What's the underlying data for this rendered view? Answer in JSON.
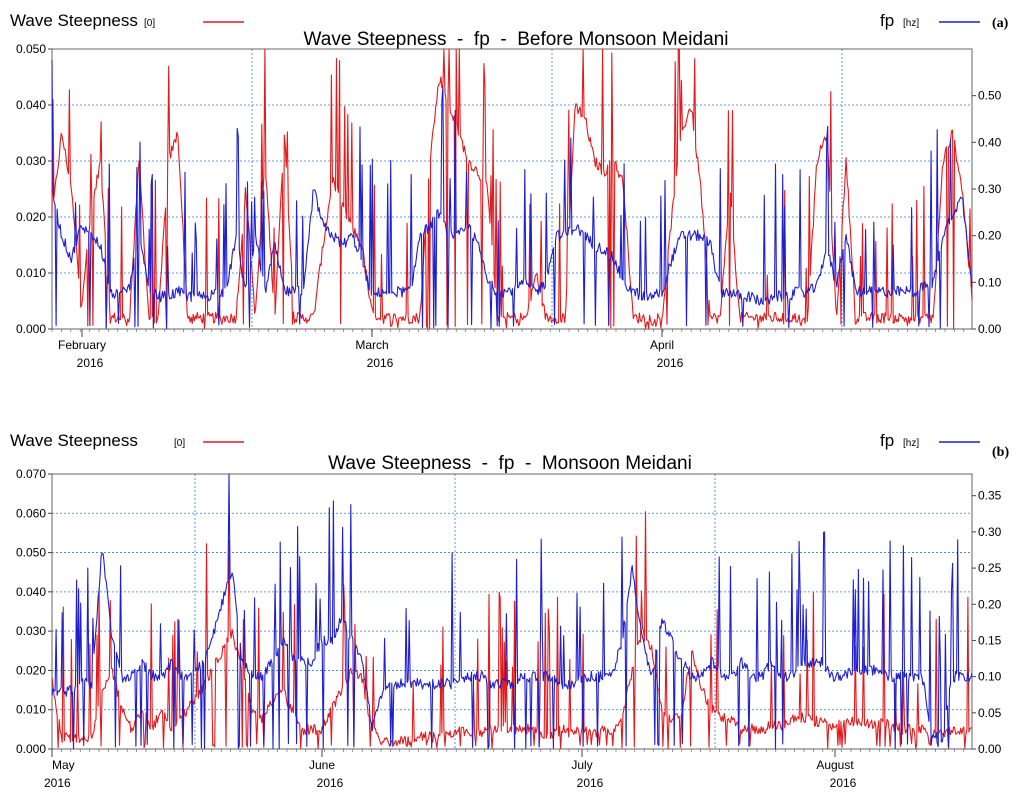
{
  "chart_data": [
    {
      "type": "line",
      "panel_tag": "(a)",
      "title": "Wave Steepness  -  fp  -  Before Monsoon Meidani",
      "legend_left": {
        "label": "Wave Steepness",
        "unit": "[0]",
        "color": "#e31a1c"
      },
      "legend_right": {
        "label": "fp",
        "unit": "[hz]",
        "color": "#1f1fd0"
      },
      "y_left": {
        "range": [
          0,
          0.05
        ],
        "ticks": [
          "0.000",
          "0.010",
          "0.020",
          "0.030",
          "0.040",
          "0.050"
        ]
      },
      "y_right": {
        "range": [
          0,
          0.6
        ],
        "ticks": [
          "0.00",
          "0.10",
          "0.20",
          "0.30",
          "0.40",
          "0.50"
        ]
      },
      "x_labels": [
        {
          "month": "February",
          "year": "2016"
        },
        {
          "month": "March",
          "year": "2016"
        },
        {
          "month": "April",
          "year": "2016"
        }
      ],
      "x_range": [
        "2016-01-26",
        "2016-05-01"
      ],
      "grid": true,
      "series": [
        {
          "name": "Wave Steepness",
          "axis": "left",
          "color": "#e31a1c",
          "approx_profile": [
            0.02,
            0.035,
            0.025,
            0.004,
            0.02,
            0.03,
            0.002,
            0.002,
            0.002,
            0.03,
            0.002,
            0.002,
            0.03,
            0.035,
            0.002,
            0.002,
            0.002,
            0.002,
            0.002,
            0.002,
            0.025,
            0.002,
            0.03,
            0.002,
            0.035,
            0.002,
            0.002,
            0.002,
            0.015,
            0.027,
            0.022,
            0.018,
            0.015,
            0.003,
            0.002,
            0.002,
            0.002,
            0.002,
            0.002,
            0.03,
            0.045,
            0.04,
            0.035,
            0.03,
            0.028,
            0.025,
            0.002,
            0.002,
            0.002,
            0.002,
            0.01,
            0.002,
            0.002,
            0.002,
            0.04,
            0.038,
            0.03,
            0.028,
            0.03,
            0.026,
            0.002,
            0.002,
            0.002,
            0.002,
            0.02,
            0.035,
            0.04,
            0.025,
            0.002,
            0.002,
            0.025,
            0.002,
            0.002,
            0.002,
            0.002,
            0.002,
            0.002,
            0.002,
            0.002,
            0.03,
            0.035,
            0.002,
            0.03,
            0.002,
            0.002,
            0.002,
            0.002,
            0.002,
            0.002,
            0.002,
            0.002,
            0.002,
            0.03,
            0.035,
            0.025,
            0.005
          ]
        },
        {
          "name": "fp",
          "axis": "right",
          "color": "#1f1fd0",
          "approx_profile": [
            0.3,
            0.2,
            0.15,
            0.22,
            0.2,
            0.18,
            0.08,
            0.07,
            0.09,
            0.2,
            0.08,
            0.07,
            0.07,
            0.08,
            0.07,
            0.07,
            0.07,
            0.08,
            0.08,
            0.2,
            0.08,
            0.2,
            0.08,
            0.18,
            0.08,
            0.08,
            0.08,
            0.3,
            0.22,
            0.2,
            0.18,
            0.2,
            0.15,
            0.07,
            0.08,
            0.08,
            0.08,
            0.08,
            0.2,
            0.22,
            0.25,
            0.2,
            0.2,
            0.22,
            0.18,
            0.1,
            0.08,
            0.08,
            0.09,
            0.1,
            0.08,
            0.1,
            0.2,
            0.2,
            0.22,
            0.2,
            0.18,
            0.17,
            0.15,
            0.1,
            0.08,
            0.07,
            0.07,
            0.08,
            0.15,
            0.2,
            0.2,
            0.2,
            0.18,
            0.08,
            0.08,
            0.07,
            0.07,
            0.06,
            0.06,
            0.07,
            0.07,
            0.08,
            0.08,
            0.09,
            0.18,
            0.09,
            0.2,
            0.08,
            0.08,
            0.08,
            0.08,
            0.08,
            0.08,
            0.08,
            0.09,
            0.1,
            0.2,
            0.25,
            0.28,
            0.1
          ]
        }
      ]
    },
    {
      "type": "line",
      "panel_tag": "(b)",
      "title": "Wave Steepness  -  fp  -  Monsoon Meidani",
      "legend_left": {
        "label": "Wave Steepness",
        "unit": "[0]",
        "color": "#e31a1c"
      },
      "legend_right": {
        "label": "fp",
        "unit": "[hz]",
        "color": "#1f1fd0"
      },
      "y_left": {
        "range": [
          0,
          0.07
        ],
        "ticks": [
          "0.000",
          "0.010",
          "0.020",
          "0.030",
          "0.040",
          "0.050",
          "0.060",
          "0.070"
        ]
      },
      "y_right": {
        "range": [
          0,
          0.38
        ],
        "ticks": [
          "0.00",
          "0.05",
          "0.10",
          "0.15",
          "0.20",
          "0.25",
          "0.30",
          "0.35"
        ]
      },
      "x_labels": [
        {
          "month": "May",
          "year": "2016"
        },
        {
          "month": "June",
          "year": "2016"
        },
        {
          "month": "July",
          "year": "2016"
        },
        {
          "month": "August",
          "year": "2016"
        }
      ],
      "x_range": [
        "2016-05-01",
        "2016-09-04"
      ],
      "grid": true,
      "series": [
        {
          "name": "Wave Steepness",
          "axis": "left",
          "color": "#e31a1c",
          "approx_profile": [
            0.017,
            0.003,
            0.003,
            0.003,
            0.003,
            0.015,
            0.02,
            0.01,
            0.005,
            0.01,
            0.005,
            0.01,
            0.005,
            0.008,
            0.012,
            0.015,
            0.02,
            0.025,
            0.03,
            0.02,
            0.01,
            0.008,
            0.012,
            0.015,
            0.01,
            0.005,
            0.005,
            0.005,
            0.01,
            0.015,
            0.02,
            0.018,
            0.005,
            0.002,
            0.002,
            0.002,
            0.002,
            0.003,
            0.003,
            0.004,
            0.004,
            0.005,
            0.004,
            0.004,
            0.005,
            0.006,
            0.005,
            0.005,
            0.005,
            0.004,
            0.004,
            0.005,
            0.004,
            0.005,
            0.004,
            0.005,
            0.004,
            0.008,
            0.02,
            0.03,
            0.025,
            0.01,
            0.008,
            0.01,
            0.025,
            0.015,
            0.01,
            0.008,
            0.008,
            0.005,
            0.005,
            0.005,
            0.006,
            0.006,
            0.008,
            0.008,
            0.007,
            0.007,
            0.006,
            0.006,
            0.007,
            0.007,
            0.006,
            0.007,
            0.006,
            0.005,
            0.005,
            0.005,
            0.004,
            0.004,
            0.005,
            0.005,
            0.005
          ]
        },
        {
          "name": "fp",
          "axis": "right",
          "color": "#1f1fd0",
          "approx_profile": [
            0.08,
            0.08,
            0.08,
            0.09,
            0.09,
            0.28,
            0.15,
            0.1,
            0.1,
            0.12,
            0.1,
            0.1,
            0.12,
            0.1,
            0.1,
            0.12,
            0.15,
            0.2,
            0.25,
            0.12,
            0.1,
            0.1,
            0.12,
            0.15,
            0.13,
            0.12,
            0.12,
            0.15,
            0.15,
            0.18,
            0.15,
            0.12,
            0.03,
            0.08,
            0.09,
            0.09,
            0.09,
            0.09,
            0.09,
            0.09,
            0.09,
            0.1,
            0.1,
            0.1,
            0.09,
            0.09,
            0.09,
            0.1,
            0.1,
            0.1,
            0.1,
            0.09,
            0.09,
            0.1,
            0.1,
            0.1,
            0.1,
            0.15,
            0.25,
            0.15,
            0.1,
            0.18,
            0.15,
            0.12,
            0.1,
            0.1,
            0.12,
            0.1,
            0.1,
            0.12,
            0.1,
            0.1,
            0.12,
            0.1,
            0.1,
            0.12,
            0.12,
            0.12,
            0.1,
            0.1,
            0.11,
            0.11,
            0.11,
            0.1,
            0.1,
            0.1,
            0.1,
            0.1,
            0.02,
            0.01,
            0.1,
            0.1,
            0.1
          ]
        }
      ]
    }
  ]
}
